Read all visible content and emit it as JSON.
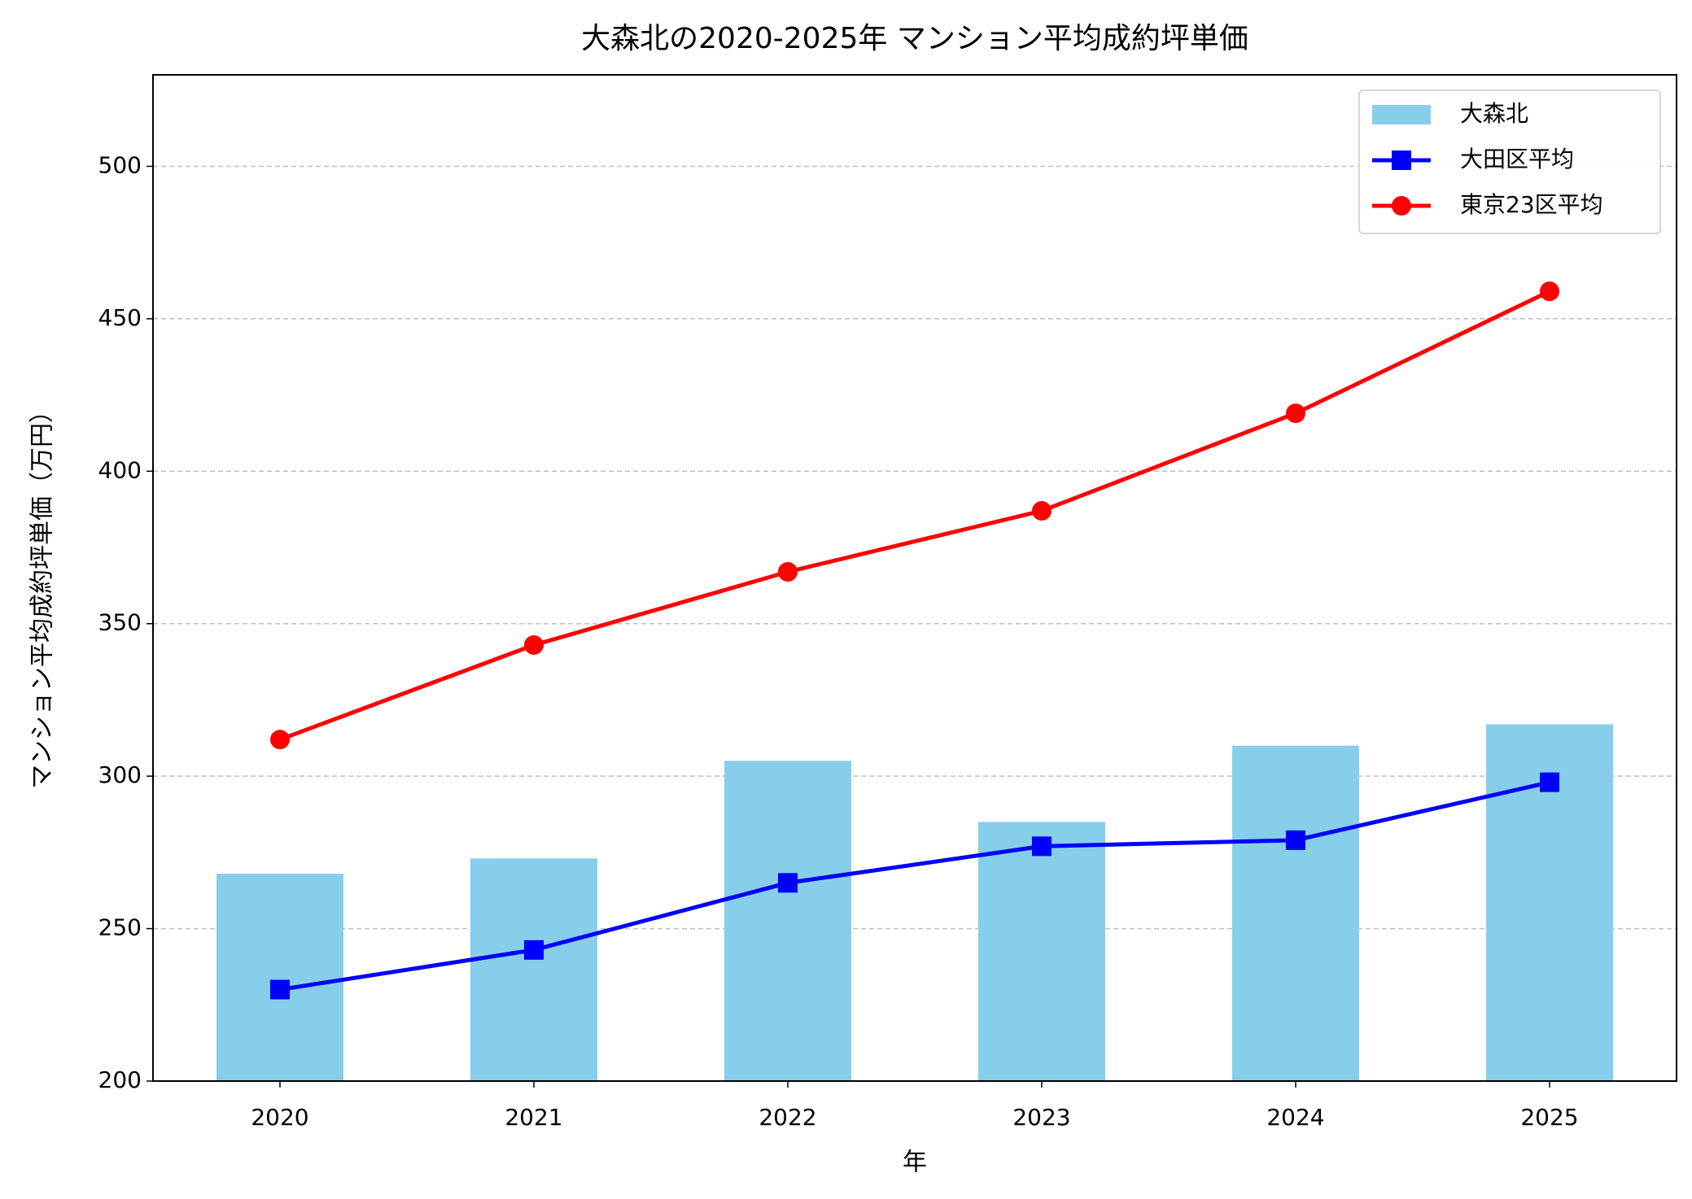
{
  "chart_data": {
    "type": "bar",
    "title": "大森北の2020-2025年 マンション平均成約坪単価",
    "x_label": "年",
    "y_label": "マンション平均成約坪単価（万円）",
    "categories": [
      "2020",
      "2021",
      "2022",
      "2023",
      "2024",
      "2025"
    ],
    "series": [
      {
        "name": "大森北",
        "type": "bar",
        "color": "#87ceeb",
        "values": [
          268,
          273,
          305,
          285,
          310,
          317
        ]
      },
      {
        "name": "大田区平均",
        "type": "line",
        "marker": "square",
        "color": "#0000ff",
        "values": [
          230,
          243,
          265,
          277,
          279,
          298
        ]
      },
      {
        "name": "東京23区平均",
        "type": "line",
        "marker": "circle",
        "color": "#ff0000",
        "values": [
          312,
          343,
          367,
          387,
          419,
          459
        ]
      }
    ],
    "ylim": [
      200,
      530
    ],
    "yticks": [
      200,
      250,
      300,
      350,
      400,
      450,
      500
    ],
    "grid": true,
    "legend": "upper right"
  }
}
